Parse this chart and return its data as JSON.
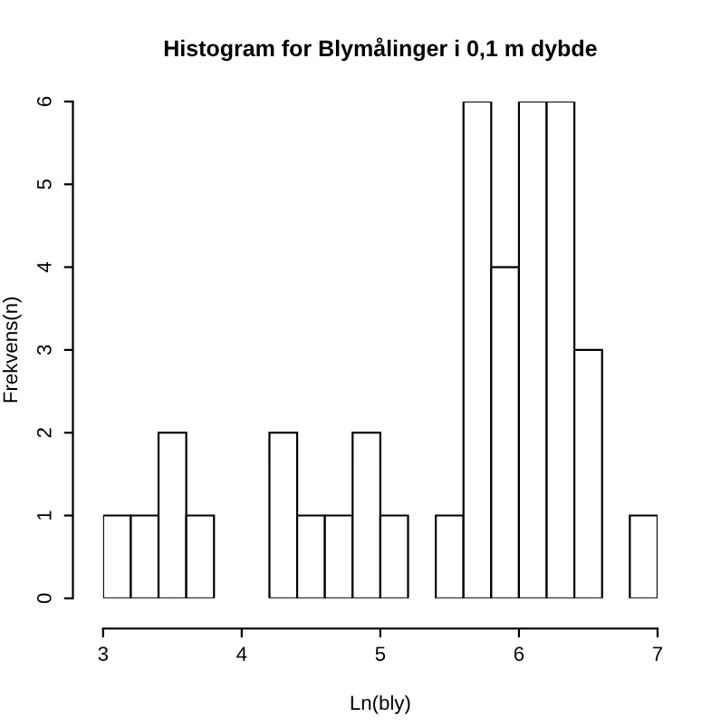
{
  "chart_data": {
    "type": "histogram",
    "title": "Histogram for Blymålinger i 0,1 m dybde",
    "xlabel": "Ln(bly)",
    "ylabel": "Frekvens(n)",
    "bins": [
      3.0,
      3.2,
      3.4,
      3.6,
      3.8,
      4.0,
      4.2,
      4.4,
      4.6,
      4.8,
      5.0,
      5.2,
      5.4,
      5.6,
      5.8,
      6.0,
      6.2,
      6.4,
      6.6,
      6.8,
      7.0
    ],
    "values": [
      1,
      1,
      2,
      1,
      0,
      0,
      2,
      1,
      1,
      2,
      1,
      0,
      1,
      6,
      4,
      6,
      6,
      3,
      0,
      1
    ],
    "color": "#ffffff",
    "xlim": [
      3,
      7
    ],
    "ylim": [
      0,
      6
    ],
    "xticks": [
      3,
      4,
      5,
      6,
      7
    ],
    "yticks": [
      0,
      1,
      2,
      3,
      4,
      5,
      6
    ],
    "grid": false
  }
}
